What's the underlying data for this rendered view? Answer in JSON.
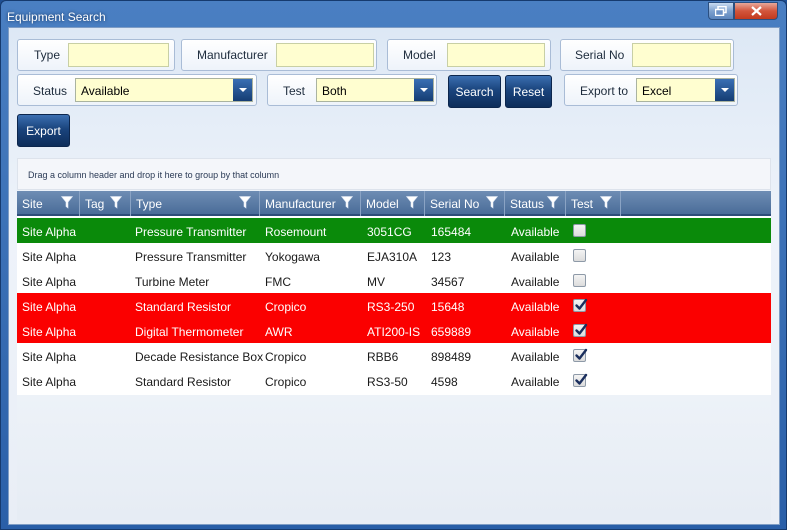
{
  "window": {
    "title": "Equipment Search"
  },
  "filters": {
    "type_label": "Type",
    "type_value": "",
    "manufacturer_label": "Manufacturer",
    "manufacturer_value": "",
    "model_label": "Model",
    "model_value": "",
    "serial_label": "Serial No",
    "serial_value": "",
    "status_label": "Status",
    "status_value": "Available",
    "test_label": "Test",
    "test_value": "Both",
    "export_label": "Export to",
    "export_value": "Excel"
  },
  "buttons": {
    "search": "Search",
    "reset": "Reset",
    "export": "Export"
  },
  "grid": {
    "group_hint": "Drag a column header and drop it here to group by that column",
    "columns": [
      "Site",
      "Tag",
      "Type",
      "Manufacturer",
      "Model",
      "Serial No",
      "Status",
      "Test"
    ],
    "rows": [
      {
        "site": "Site Alpha",
        "tag": "",
        "type": "Pressure Transmitter",
        "manufacturer": "Rosemount",
        "model": "3051CG",
        "serial": "165484",
        "status": "Available",
        "test": false,
        "highlight": "green"
      },
      {
        "site": "Site Alpha",
        "tag": "",
        "type": "Pressure Transmitter",
        "manufacturer": "Yokogawa",
        "model": "EJA310A",
        "serial": "123",
        "status": "Available",
        "test": false,
        "highlight": "none"
      },
      {
        "site": "Site Alpha",
        "tag": "",
        "type": "Turbine Meter",
        "manufacturer": "FMC",
        "model": "MV",
        "serial": "34567",
        "status": "Available",
        "test": false,
        "highlight": "none"
      },
      {
        "site": "Site Alpha",
        "tag": "",
        "type": "Standard Resistor",
        "manufacturer": "Cropico",
        "model": "RS3-250",
        "serial": "15648",
        "status": "Available",
        "test": true,
        "highlight": "red"
      },
      {
        "site": "Site Alpha",
        "tag": "",
        "type": "Digital Thermometer",
        "manufacturer": "AWR",
        "model": "ATI200-IS",
        "serial": "659889",
        "status": "Available",
        "test": true,
        "highlight": "red"
      },
      {
        "site": "Site Alpha",
        "tag": "",
        "type": "Decade Resistance Box",
        "manufacturer": "Cropico",
        "model": "RBB6",
        "serial": "898489",
        "status": "Available",
        "test": true,
        "highlight": "none"
      },
      {
        "site": "Site Alpha",
        "tag": "",
        "type": "Standard Resistor",
        "manufacturer": "Cropico",
        "model": "RS3-50",
        "serial": "4598",
        "status": "Available",
        "test": true,
        "highlight": "none"
      }
    ]
  },
  "colors": {
    "row_green": "#0a8a0a",
    "row_red": "#fb0000",
    "input_bg": "#fffed0",
    "button_dark": "#1a447d"
  }
}
